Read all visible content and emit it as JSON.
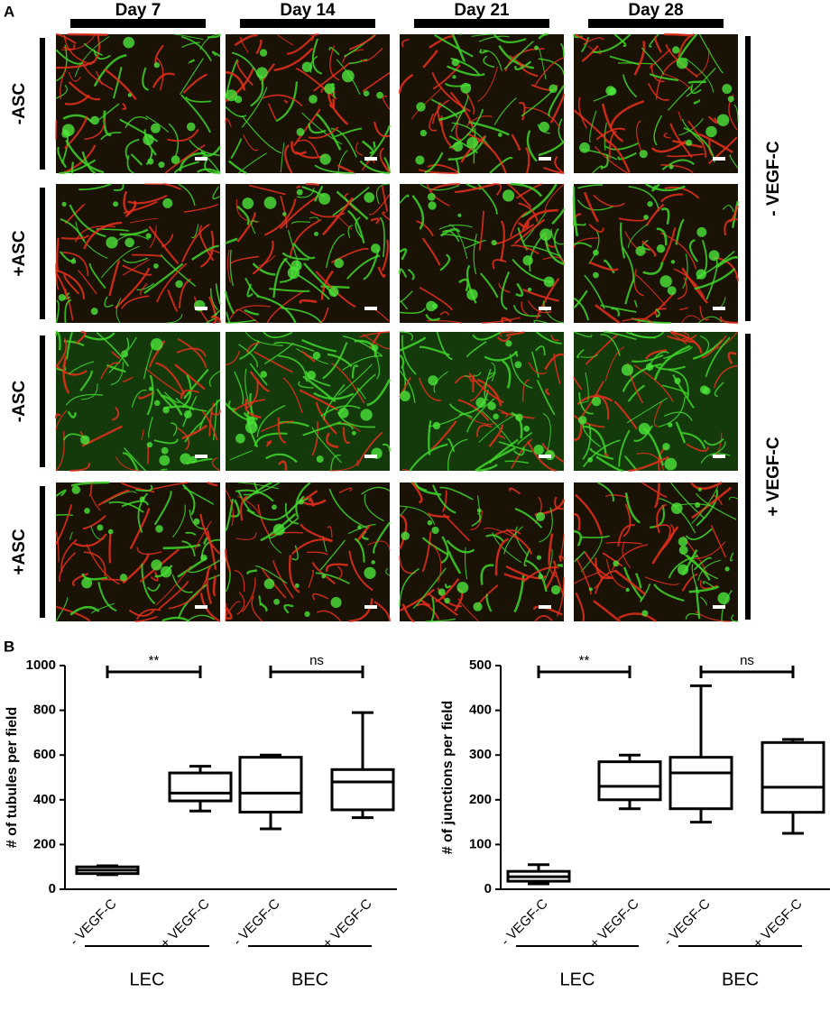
{
  "panel_labels": [
    "A",
    "B"
  ],
  "panel_a": {
    "columns": [
      "Day 7",
      "Day 14",
      "Day 21",
      "Day 28"
    ],
    "rows": [
      "-ASC",
      "+ASC",
      "-ASC",
      "+ASC"
    ],
    "groups": [
      "- VEGF-C",
      "+ VEGF-C"
    ]
  },
  "chart_data": [
    {
      "type": "box",
      "ylabel": "# of tubules per field",
      "categories": [
        "- VEGF-C",
        "+ VEGF-C",
        "- VEGF-C",
        "+ VEGF-C"
      ],
      "group_labels": [
        "LEC",
        "BEC"
      ],
      "min": [
        65,
        350,
        270,
        320
      ],
      "q1": [
        70,
        395,
        345,
        355
      ],
      "median": [
        85,
        430,
        430,
        480
      ],
      "q3": [
        100,
        520,
        590,
        535
      ],
      "max": [
        105,
        550,
        600,
        790
      ],
      "annotations": [
        "**",
        "ns"
      ],
      "color": "#000000",
      "ylim": [
        0,
        1000
      ],
      "yticks": [
        0,
        200,
        400,
        600,
        800,
        1000
      ]
    },
    {
      "type": "box",
      "ylabel": "# of junctions per field",
      "categories": [
        "- VEGF-C",
        "+ VEGF-C",
        "- VEGF-C",
        "+ VEGF-C"
      ],
      "group_labels": [
        "LEC",
        "BEC"
      ],
      "min": [
        12,
        180,
        150,
        125
      ],
      "q1": [
        18,
        200,
        180,
        172
      ],
      "median": [
        28,
        230,
        260,
        228
      ],
      "q3": [
        40,
        285,
        295,
        328
      ],
      "max": [
        55,
        300,
        455,
        335
      ],
      "annotations": [
        "**",
        "ns"
      ],
      "color": "#000000",
      "ylim": [
        0,
        500
      ],
      "yticks": [
        0,
        100,
        200,
        300,
        400,
        500
      ]
    }
  ]
}
